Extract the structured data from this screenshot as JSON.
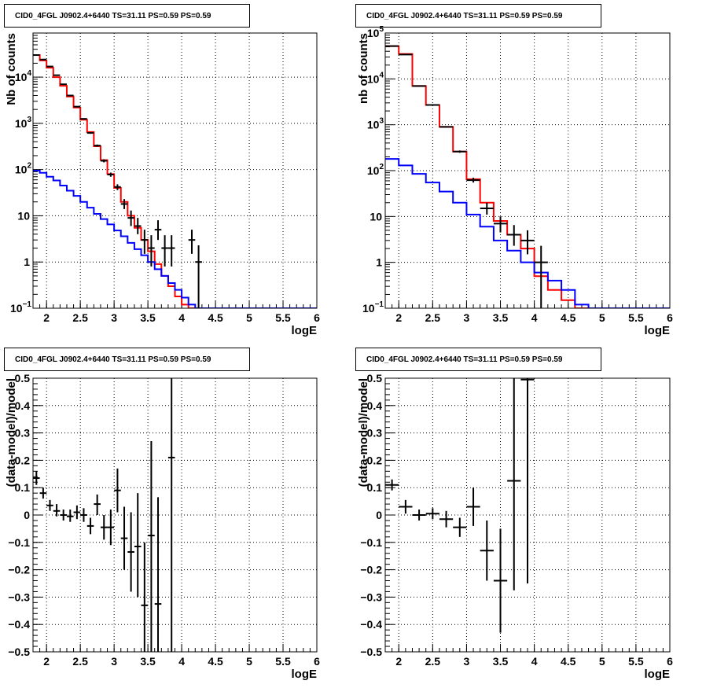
{
  "chart_data": [
    {
      "type": "line",
      "title": "CID0_4FGL J0902.4+6440 TS=31.11 PS=0.59 PS=0.59",
      "xlabel": "logE",
      "ylabel": "Nb of counts",
      "xlim": [
        1.8,
        6.0
      ],
      "ylim": [
        0.1,
        90000
      ],
      "yscale": "log",
      "grid": true,
      "xticks": [
        "2",
        "2.5",
        "3",
        "3.5",
        "4",
        "4.5",
        "5",
        "5.5",
        "6"
      ],
      "yticks": [
        {
          "v": 0.1,
          "base": "10",
          "exp": "−1"
        },
        {
          "v": 1,
          "label": "1"
        },
        {
          "v": 10,
          "label": "10"
        },
        {
          "v": 100,
          "base": "10",
          "exp": "2"
        },
        {
          "v": 1000,
          "base": "10",
          "exp": "3"
        },
        {
          "v": 10000,
          "base": "10",
          "exp": "4"
        }
      ],
      "bin_edges": [
        1.8,
        1.9,
        2.0,
        2.1,
        2.2,
        2.3,
        2.4,
        2.5,
        2.6,
        2.7,
        2.8,
        2.9,
        3.0,
        3.1,
        3.2,
        3.3,
        3.4,
        3.5,
        3.6,
        3.7,
        3.8,
        3.9,
        4.0,
        4.1,
        4.2,
        4.3,
        4.4,
        4.5,
        4.6,
        4.7,
        4.8,
        4.9,
        5.0,
        5.1,
        5.2,
        5.3,
        5.4,
        5.5,
        5.6,
        5.7,
        5.8,
        5.9,
        6.0
      ],
      "series": [
        {
          "color": "#ff0000",
          "kind": "step",
          "values": [
            30000,
            23000,
            16000,
            10000,
            6500,
            3800,
            2200,
            1200,
            650,
            320,
            160,
            80,
            40,
            20,
            10,
            5.5,
            3,
            1.7,
            0.9,
            0.5,
            0.3,
            0.18,
            0.12,
            0.1,
            0.1,
            0.1,
            0.1,
            0.1,
            0.1,
            0.1,
            0.1,
            0.1,
            0.1,
            0.1,
            0.1,
            0.1,
            0.1,
            0.1,
            0.1,
            0.1,
            0.1,
            0.1
          ]
        },
        {
          "color": "#0000ff",
          "kind": "step",
          "values": [
            95,
            85,
            70,
            58,
            45,
            35,
            27,
            20,
            15,
            11,
            8.5,
            6.5,
            4.8,
            3.6,
            2.6,
            1.9,
            1.4,
            1.0,
            0.7,
            0.5,
            0.35,
            0.25,
            0.17,
            0.12,
            0.1,
            0.1,
            0.1,
            0.1,
            0.1,
            0.1,
            0.1,
            0.1,
            0.1,
            0.1,
            0.1,
            0.1,
            0.1,
            0.1,
            0.1,
            0.1,
            0.1,
            0.1
          ]
        },
        {
          "color": "#000000",
          "kind": "errorbar",
          "points": [
            {
              "x": 1.85,
              "y": 30000,
              "lo": 29800,
              "hi": 30200,
              "xe": 0.05
            },
            {
              "x": 1.95,
              "y": 24000,
              "lo": 23800,
              "hi": 24200,
              "xe": 0.05
            },
            {
              "x": 2.05,
              "y": 17000,
              "lo": 16800,
              "hi": 17200,
              "xe": 0.05
            },
            {
              "x": 2.15,
              "y": 11000,
              "lo": 10800,
              "hi": 11200,
              "xe": 0.05
            },
            {
              "x": 2.25,
              "y": 7000,
              "lo": 6900,
              "hi": 7100,
              "xe": 0.05
            },
            {
              "x": 2.35,
              "y": 4000,
              "lo": 3930,
              "hi": 4070,
              "xe": 0.05
            },
            {
              "x": 2.45,
              "y": 2300,
              "lo": 2250,
              "hi": 2350,
              "xe": 0.05
            },
            {
              "x": 2.55,
              "y": 1250,
              "lo": 1215,
              "hi": 1285,
              "xe": 0.05
            },
            {
              "x": 2.65,
              "y": 620,
              "lo": 595,
              "hi": 645,
              "xe": 0.05
            },
            {
              "x": 2.75,
              "y": 330,
              "lo": 312,
              "hi": 348,
              "xe": 0.05
            },
            {
              "x": 2.85,
              "y": 155,
              "lo": 143,
              "hi": 167,
              "xe": 0.05
            },
            {
              "x": 2.95,
              "y": 78,
              "lo": 70,
              "hi": 86,
              "xe": 0.05
            },
            {
              "x": 3.05,
              "y": 42,
              "lo": 36,
              "hi": 48,
              "xe": 0.05
            },
            {
              "x": 3.15,
              "y": 18,
              "lo": 14,
              "hi": 23,
              "xe": 0.05
            },
            {
              "x": 3.25,
              "y": 9,
              "lo": 6,
              "hi": 13,
              "xe": 0.05
            },
            {
              "x": 3.35,
              "y": 6,
              "lo": 4,
              "hi": 9,
              "xe": 0.05
            },
            {
              "x": 3.45,
              "y": 3,
              "lo": 1.5,
              "hi": 5,
              "xe": 0.05
            },
            {
              "x": 3.55,
              "y": 2,
              "lo": 0.8,
              "hi": 3.8,
              "xe": 0.05
            },
            {
              "x": 3.65,
              "y": 5,
              "lo": 3,
              "hi": 8,
              "xe": 0.05
            },
            {
              "x": 3.75,
              "y": 2,
              "lo": 0.8,
              "hi": 3.8,
              "xe": 0.05
            },
            {
              "x": 3.85,
              "y": 2,
              "lo": 0.8,
              "hi": 3.8,
              "xe": 0.05
            },
            {
              "x": 4.15,
              "y": 3,
              "lo": 1.5,
              "hi": 5,
              "xe": 0.05
            },
            {
              "x": 4.25,
              "y": 1,
              "lo": 0.1,
              "hi": 2.3,
              "xe": 0.05
            }
          ]
        }
      ]
    },
    {
      "type": "line",
      "title": "CID0_4FGL J0902.4+6440 TS=31.11 PS=0.59 PS=0.59",
      "xlabel": "logE",
      "ylabel": "nb of counts",
      "xlim": [
        1.8,
        6.0
      ],
      "ylim": [
        0.1,
        100000
      ],
      "yscale": "log",
      "grid": true,
      "xticks": [
        "2",
        "2.5",
        "3",
        "3.5",
        "4",
        "4.5",
        "5",
        "5.5",
        "6"
      ],
      "yticks": [
        {
          "v": 0.1,
          "base": "10",
          "exp": "−1"
        },
        {
          "v": 1,
          "label": "1"
        },
        {
          "v": 10,
          "label": "10"
        },
        {
          "v": 100,
          "base": "10",
          "exp": "2"
        },
        {
          "v": 1000,
          "base": "10",
          "exp": "3"
        },
        {
          "v": 10000,
          "base": "10",
          "exp": "4"
        },
        {
          "v": 100000,
          "base": "10",
          "exp": "5"
        }
      ],
      "bin_edges": [
        1.8,
        2.0,
        2.2,
        2.4,
        2.6,
        2.8,
        3.0,
        3.2,
        3.4,
        3.6,
        3.8,
        4.0,
        4.2,
        4.4,
        4.6,
        4.8,
        5.0,
        5.2,
        5.4,
        5.6,
        5.8,
        6.0
      ],
      "series": [
        {
          "color": "#ff0000",
          "kind": "step",
          "values": [
            52000,
            35000,
            7000,
            2700,
            900,
            260,
            65,
            20,
            8,
            4,
            2,
            0.5,
            0.25,
            0.15,
            0.1,
            0.1,
            0.1,
            0.1,
            0.1,
            0.1,
            0.1
          ]
        },
        {
          "color": "#0000ff",
          "kind": "step",
          "values": [
            180,
            130,
            85,
            55,
            35,
            20,
            11,
            6,
            3,
            1.8,
            1,
            0.6,
            0.4,
            0.25,
            0.12,
            0.1,
            0.1,
            0.1,
            0.1,
            0.1,
            0.1
          ]
        },
        {
          "color": "#000000",
          "kind": "errorbar",
          "points": [
            {
              "x": 1.9,
              "y": 52000,
              "lo": 51700,
              "hi": 52300,
              "xe": 0.1
            },
            {
              "x": 2.1,
              "y": 34000,
              "lo": 33700,
              "hi": 34300,
              "xe": 0.1
            },
            {
              "x": 2.3,
              "y": 7000,
              "lo": 6900,
              "hi": 7100,
              "xe": 0.1
            },
            {
              "x": 2.5,
              "y": 2700,
              "lo": 2650,
              "hi": 2750,
              "xe": 0.1
            },
            {
              "x": 2.7,
              "y": 900,
              "lo": 870,
              "hi": 930,
              "xe": 0.1
            },
            {
              "x": 2.9,
              "y": 260,
              "lo": 245,
              "hi": 275,
              "xe": 0.1
            },
            {
              "x": 3.1,
              "y": 62,
              "lo": 55,
              "hi": 70,
              "xe": 0.1
            },
            {
              "x": 3.3,
              "y": 15,
              "lo": 11,
              "hi": 20,
              "xe": 0.1
            },
            {
              "x": 3.5,
              "y": 7,
              "lo": 4.5,
              "hi": 10,
              "xe": 0.1
            },
            {
              "x": 3.7,
              "y": 4,
              "lo": 2.3,
              "hi": 6.5,
              "xe": 0.1
            },
            {
              "x": 3.9,
              "y": 3,
              "lo": 1.5,
              "hi": 5,
              "xe": 0.1
            },
            {
              "x": 4.1,
              "y": 1,
              "lo": 0.1,
              "hi": 2.3,
              "xe": 0.1
            }
          ]
        }
      ]
    },
    {
      "type": "scatter",
      "title": "CID0_4FGL J0902.4+6440 TS=31.11 PS=0.59 PS=0.59",
      "xlabel": "logE",
      "ylabel": "(data-model)/model",
      "xlim": [
        1.8,
        6.0
      ],
      "ylim": [
        -0.5,
        0.5
      ],
      "grid": true,
      "xticks": [
        "2",
        "2.5",
        "3",
        "3.5",
        "4",
        "4.5",
        "5",
        "5.5",
        "6"
      ],
      "yticks": [
        "−0.5",
        "−0.4",
        "−0.3",
        "−0.2",
        "−0.1",
        "0",
        "0.1",
        "0.2",
        "0.3",
        "0.4",
        "0.5"
      ],
      "points": [
        {
          "x": 1.85,
          "y": 0.135,
          "lo": 0.11,
          "hi": 0.16,
          "xe": 0.05
        },
        {
          "x": 1.95,
          "y": 0.08,
          "lo": 0.06,
          "hi": 0.1,
          "xe": 0.05
        },
        {
          "x": 2.05,
          "y": 0.035,
          "lo": 0.015,
          "hi": 0.055,
          "xe": 0.05
        },
        {
          "x": 2.15,
          "y": 0.015,
          "lo": -0.005,
          "hi": 0.04,
          "xe": 0.05
        },
        {
          "x": 2.25,
          "y": 0.0,
          "lo": -0.02,
          "hi": 0.02,
          "xe": 0.05
        },
        {
          "x": 2.35,
          "y": -0.005,
          "lo": -0.025,
          "hi": 0.02,
          "xe": 0.05
        },
        {
          "x": 2.45,
          "y": 0.01,
          "lo": -0.015,
          "hi": 0.035,
          "xe": 0.05
        },
        {
          "x": 2.55,
          "y": 0.0,
          "lo": -0.025,
          "hi": 0.025,
          "xe": 0.05
        },
        {
          "x": 2.65,
          "y": -0.04,
          "lo": -0.07,
          "hi": -0.01,
          "xe": 0.05
        },
        {
          "x": 2.75,
          "y": 0.04,
          "lo": 0.0,
          "hi": 0.075,
          "xe": 0.05
        },
        {
          "x": 2.85,
          "y": -0.045,
          "lo": -0.09,
          "hi": 0.0,
          "xe": 0.05
        },
        {
          "x": 2.95,
          "y": -0.045,
          "lo": -0.11,
          "hi": 0.02,
          "xe": 0.05
        },
        {
          "x": 3.05,
          "y": 0.09,
          "lo": 0.01,
          "hi": 0.17,
          "xe": 0.05
        },
        {
          "x": 3.15,
          "y": -0.085,
          "lo": -0.2,
          "hi": 0.03,
          "xe": 0.05
        },
        {
          "x": 3.25,
          "y": -0.135,
          "lo": -0.28,
          "hi": 0.01,
          "xe": 0.05
        },
        {
          "x": 3.35,
          "y": -0.115,
          "lo": -0.3,
          "hi": 0.08,
          "xe": 0.05
        },
        {
          "x": 3.45,
          "y": -0.33,
          "lo": -0.5,
          "hi": -0.1,
          "xe": 0.05
        },
        {
          "x": 3.55,
          "y": -0.075,
          "lo": -0.5,
          "hi": 0.27,
          "xe": 0.05
        },
        {
          "x": 3.65,
          "y": -0.325,
          "lo": -0.5,
          "hi": 0.065,
          "xe": 0.05
        },
        {
          "x": 3.85,
          "y": 0.21,
          "lo": -0.5,
          "hi": 0.5,
          "xe": 0.05
        }
      ]
    },
    {
      "type": "scatter",
      "title": "CID0_4FGL J0902.4+6440 TS=31.11 PS=0.59 PS=0.59",
      "xlabel": "logE",
      "ylabel": "(data-model)/model",
      "xlim": [
        1.8,
        6.0
      ],
      "ylim": [
        -0.5,
        0.5
      ],
      "grid": true,
      "xticks": [
        "2",
        "2.5",
        "3",
        "3.5",
        "4",
        "4.5",
        "5",
        "5.5",
        "6"
      ],
      "yticks": [
        "−0.5",
        "−0.4",
        "−0.3",
        "−0.2",
        "−0.1",
        "0",
        "0.1",
        "0.2",
        "0.3",
        "0.4",
        "0.5"
      ],
      "points": [
        {
          "x": 1.9,
          "y": 0.11,
          "lo": 0.09,
          "hi": 0.13,
          "xe": 0.1
        },
        {
          "x": 2.1,
          "y": 0.03,
          "lo": 0.005,
          "hi": 0.055,
          "xe": 0.1
        },
        {
          "x": 2.3,
          "y": 0.0,
          "lo": -0.02,
          "hi": 0.02,
          "xe": 0.1
        },
        {
          "x": 2.5,
          "y": 0.005,
          "lo": -0.015,
          "hi": 0.025,
          "xe": 0.1
        },
        {
          "x": 2.7,
          "y": -0.015,
          "lo": -0.045,
          "hi": 0.015,
          "xe": 0.1
        },
        {
          "x": 2.9,
          "y": -0.045,
          "lo": -0.08,
          "hi": -0.01,
          "xe": 0.1
        },
        {
          "x": 3.1,
          "y": 0.03,
          "lo": -0.04,
          "hi": 0.1,
          "xe": 0.1
        },
        {
          "x": 3.3,
          "y": -0.13,
          "lo": -0.24,
          "hi": -0.02,
          "xe": 0.1
        },
        {
          "x": 3.5,
          "y": -0.24,
          "lo": -0.43,
          "hi": -0.05,
          "xe": 0.1
        },
        {
          "x": 3.7,
          "y": 0.125,
          "lo": -0.275,
          "hi": 0.5,
          "xe": 0.1
        },
        {
          "x": 3.9,
          "y": 0.495,
          "lo": -0.25,
          "hi": 0.5,
          "xe": 0.1
        }
      ]
    }
  ]
}
